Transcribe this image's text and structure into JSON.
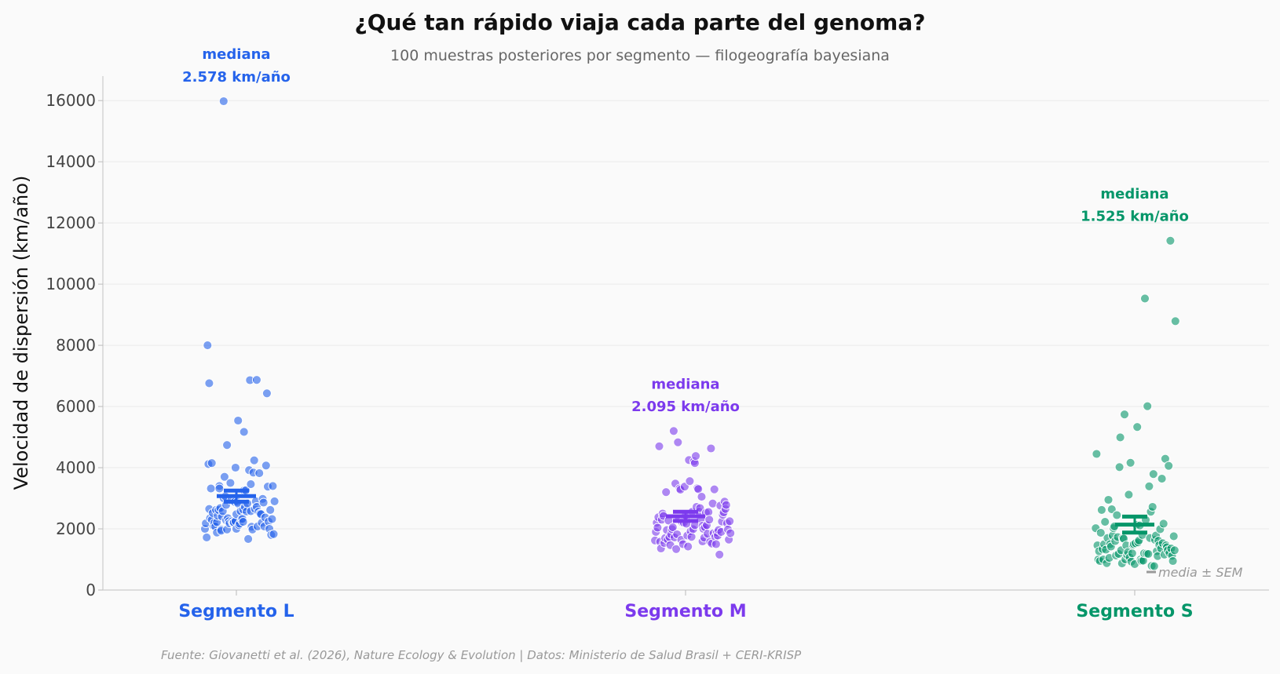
{
  "chart_data": {
    "type": "scatter",
    "title": "¿Qué tan rápido viaja cada parte del genoma?",
    "subtitle": "100 muestras posteriores por segmento — filogeografía bayesiana",
    "xlabel": "",
    "ylabel": "Velocidad de dispersión (km/año)",
    "ylim": [
      0,
      16800
    ],
    "yticks": [
      0,
      2000,
      4000,
      6000,
      8000,
      10000,
      12000,
      14000,
      16000
    ],
    "grid": "horizontal",
    "categories": [
      "Segmento L",
      "Segmento M",
      "Segmento S"
    ],
    "legend": {
      "label": "media ± SEM",
      "placement": "bottom-right"
    },
    "source": "Fuente: Giovanetti et al. (2026), Nature Ecology & Evolution | Datos: Ministerio de Salud Brasil + CERI-KRISP",
    "series": [
      {
        "name": "Segmento L",
        "color": "#2563eb",
        "median_label": "mediana\n2.578 km/año",
        "mean": 3070,
        "sem": 180,
        "points": [
          [
            -0.37,
            2000
          ],
          [
            -0.36,
            2180
          ],
          [
            -0.35,
            1720
          ],
          [
            -0.34,
            8000
          ],
          [
            -0.33,
            4120
          ],
          [
            -0.32,
            6760
          ],
          [
            -0.32,
            2650
          ],
          [
            -0.31,
            2350
          ],
          [
            -0.3,
            3320
          ],
          [
            -0.29,
            2300
          ],
          [
            -0.29,
            4150
          ],
          [
            -0.28,
            2520
          ],
          [
            -0.27,
            2100
          ],
          [
            -0.26,
            2200
          ],
          [
            -0.25,
            2080
          ],
          [
            -0.24,
            2620
          ],
          [
            -0.23,
            1880
          ],
          [
            -0.23,
            2220
          ],
          [
            -0.22,
            2430
          ],
          [
            -0.21,
            2620
          ],
          [
            -0.2,
            3400
          ],
          [
            -0.2,
            3320
          ],
          [
            -0.19,
            2680
          ],
          [
            -0.18,
            1980
          ],
          [
            -0.18,
            1940
          ],
          [
            -0.17,
            2400
          ],
          [
            -0.16,
            2580
          ],
          [
            -0.15,
            3000
          ],
          [
            -0.15,
            15980
          ],
          [
            -0.14,
            3700
          ],
          [
            -0.13,
            3060
          ],
          [
            -0.12,
            2780
          ],
          [
            -0.12,
            2280
          ],
          [
            -0.11,
            1980
          ],
          [
            -0.11,
            4740
          ],
          [
            -0.1,
            2350
          ],
          [
            -0.09,
            2250
          ],
          [
            -0.08,
            2180
          ],
          [
            -0.07,
            3500
          ],
          [
            -0.06,
            2930
          ],
          [
            -0.05,
            2250
          ],
          [
            -0.04,
            2200
          ],
          [
            -0.03,
            2210
          ],
          [
            -0.02,
            2880
          ],
          [
            -0.01,
            2250
          ],
          [
            -0.01,
            4000
          ],
          [
            0.0,
            2480
          ],
          [
            0.0,
            2000
          ],
          [
            0.01,
            2880
          ],
          [
            0.02,
            2830
          ],
          [
            0.02,
            5540
          ],
          [
            0.03,
            2120
          ],
          [
            0.04,
            2170
          ],
          [
            0.05,
            2580
          ],
          [
            0.06,
            2300
          ],
          [
            0.07,
            2330
          ],
          [
            0.08,
            2630
          ],
          [
            0.08,
            2230
          ],
          [
            0.09,
            3260
          ],
          [
            0.09,
            5170
          ],
          [
            0.1,
            2720
          ],
          [
            0.11,
            3260
          ],
          [
            0.12,
            2570
          ],
          [
            0.13,
            2830
          ],
          [
            0.14,
            1670
          ],
          [
            0.15,
            3920
          ],
          [
            0.16,
            6860
          ],
          [
            0.17,
            2580
          ],
          [
            0.17,
            3460
          ],
          [
            0.18,
            2070
          ],
          [
            0.19,
            1980
          ],
          [
            0.2,
            3840
          ],
          [
            0.21,
            4240
          ],
          [
            0.22,
            2650
          ],
          [
            0.23,
            2900
          ],
          [
            0.24,
            6870
          ],
          [
            0.24,
            2720
          ],
          [
            0.25,
            2080
          ],
          [
            0.26,
            2560
          ],
          [
            0.27,
            3820
          ],
          [
            0.28,
            2500
          ],
          [
            0.29,
            2480
          ],
          [
            0.3,
            2200
          ],
          [
            0.31,
            2980
          ],
          [
            0.32,
            2860
          ],
          [
            0.33,
            2080
          ],
          [
            0.34,
            2370
          ],
          [
            0.35,
            4070
          ],
          [
            0.36,
            6430
          ],
          [
            0.37,
            3380
          ],
          [
            0.38,
            2240
          ],
          [
            0.39,
            2000
          ],
          [
            0.4,
            2620
          ],
          [
            0.41,
            1800
          ],
          [
            0.42,
            2320
          ],
          [
            0.43,
            3400
          ],
          [
            0.44,
            1830
          ],
          [
            0.45,
            2900
          ]
        ]
      },
      {
        "name": "Segmento M",
        "color": "#7c3aed",
        "median_label": "mediana\n2.095 km/año",
        "mean": 2410,
        "sem": 150,
        "points": [
          [
            -0.36,
            1620
          ],
          [
            -0.35,
            1900
          ],
          [
            -0.34,
            2200
          ],
          [
            -0.33,
            2040
          ],
          [
            -0.32,
            2380
          ],
          [
            -0.31,
            4700
          ],
          [
            -0.3,
            1580
          ],
          [
            -0.29,
            1360
          ],
          [
            -0.28,
            2300
          ],
          [
            -0.27,
            2500
          ],
          [
            -0.26,
            2420
          ],
          [
            -0.25,
            1540
          ],
          [
            -0.24,
            1700
          ],
          [
            -0.23,
            3200
          ],
          [
            -0.22,
            1960
          ],
          [
            -0.21,
            1650
          ],
          [
            -0.2,
            2270
          ],
          [
            -0.19,
            1730
          ],
          [
            -0.18,
            1470
          ],
          [
            -0.17,
            1820
          ],
          [
            -0.16,
            1990
          ],
          [
            -0.15,
            2050
          ],
          [
            -0.14,
            5200
          ],
          [
            -0.13,
            1720
          ],
          [
            -0.12,
            3480
          ],
          [
            -0.11,
            1340
          ],
          [
            -0.1,
            1820
          ],
          [
            -0.09,
            4830
          ],
          [
            -0.08,
            2310
          ],
          [
            -0.07,
            3320
          ],
          [
            -0.06,
            3280
          ],
          [
            -0.05,
            1640
          ],
          [
            -0.04,
            2210
          ],
          [
            -0.03,
            1500
          ],
          [
            -0.02,
            2200
          ],
          [
            -0.01,
            3380
          ],
          [
            0.0,
            2350
          ],
          [
            0.0,
            2440
          ],
          [
            0.01,
            2170
          ],
          [
            0.02,
            1780
          ],
          [
            0.03,
            1420
          ],
          [
            0.04,
            4250
          ],
          [
            0.05,
            3560
          ],
          [
            0.06,
            1920
          ],
          [
            0.07,
            1740
          ],
          [
            0.08,
            2560
          ],
          [
            0.09,
            1990
          ],
          [
            0.1,
            4210
          ],
          [
            0.11,
            4150
          ],
          [
            0.11,
            2120
          ],
          [
            0.12,
            4380
          ],
          [
            0.13,
            2720
          ],
          [
            0.14,
            3330
          ],
          [
            0.15,
            3300
          ],
          [
            0.16,
            2560
          ],
          [
            0.17,
            2680
          ],
          [
            0.18,
            2320
          ],
          [
            0.19,
            3050
          ],
          [
            0.2,
            2100
          ],
          [
            0.2,
            1590
          ],
          [
            0.21,
            2000
          ],
          [
            0.22,
            1710
          ],
          [
            0.23,
            2050
          ],
          [
            0.24,
            2530
          ],
          [
            0.25,
            2120
          ],
          [
            0.26,
            1840
          ],
          [
            0.27,
            2550
          ],
          [
            0.28,
            2300
          ],
          [
            0.29,
            1580
          ],
          [
            0.3,
            4630
          ],
          [
            0.31,
            1520
          ],
          [
            0.32,
            2830
          ],
          [
            0.33,
            1860
          ],
          [
            0.34,
            3290
          ],
          [
            0.35,
            1740
          ],
          [
            0.36,
            1500
          ],
          [
            0.37,
            1880
          ],
          [
            0.38,
            1780
          ],
          [
            0.39,
            1960
          ],
          [
            0.4,
            1160
          ],
          [
            0.41,
            2760
          ],
          [
            0.42,
            1900
          ],
          [
            0.43,
            2240
          ],
          [
            0.44,
            2460
          ],
          [
            0.45,
            2540
          ],
          [
            0.46,
            2890
          ],
          [
            0.47,
            2650
          ],
          [
            0.48,
            2780
          ],
          [
            0.49,
            2180
          ],
          [
            0.5,
            1980
          ],
          [
            0.51,
            1650
          ],
          [
            0.52,
            2250
          ],
          [
            0.53,
            1860
          ]
        ]
      },
      {
        "name": "Segmento S",
        "color": "#059669",
        "median_label": "mediana\n1.525 km/año",
        "mean": 2140,
        "sem": 260,
        "points": [
          [
            -0.46,
            2020
          ],
          [
            -0.45,
            4450
          ],
          [
            -0.44,
            1460
          ],
          [
            -0.43,
            1000
          ],
          [
            -0.42,
            1270
          ],
          [
            -0.41,
            950
          ],
          [
            -0.4,
            1870
          ],
          [
            -0.39,
            2620
          ],
          [
            -0.38,
            1340
          ],
          [
            -0.37,
            1000
          ],
          [
            -0.36,
            1500
          ],
          [
            -0.35,
            2230
          ],
          [
            -0.34,
            1320
          ],
          [
            -0.33,
            880
          ],
          [
            -0.32,
            1700
          ],
          [
            -0.31,
            2950
          ],
          [
            -0.3,
            1050
          ],
          [
            -0.29,
            1500
          ],
          [
            -0.28,
            1420
          ],
          [
            -0.27,
            2640
          ],
          [
            -0.26,
            1780
          ],
          [
            -0.25,
            2020
          ],
          [
            -0.24,
            2080
          ],
          [
            -0.23,
            1600
          ],
          [
            -0.22,
            1130
          ],
          [
            -0.21,
            2450
          ],
          [
            -0.2,
            1730
          ],
          [
            -0.19,
            1180
          ],
          [
            -0.18,
            4020
          ],
          [
            -0.17,
            4990
          ],
          [
            -0.16,
            1300
          ],
          [
            -0.15,
            870
          ],
          [
            -0.14,
            1700
          ],
          [
            -0.13,
            1680
          ],
          [
            -0.12,
            5740
          ],
          [
            -0.11,
            1000
          ],
          [
            -0.1,
            1460
          ],
          [
            -0.09,
            1150
          ],
          [
            -0.08,
            1240
          ],
          [
            -0.07,
            3120
          ],
          [
            -0.06,
            1070
          ],
          [
            -0.05,
            4160
          ],
          [
            -0.04,
            930
          ],
          [
            -0.03,
            1200
          ],
          [
            -0.02,
            1470
          ],
          [
            -0.01,
            1500
          ],
          [
            0.0,
            850
          ],
          [
            0.01,
            1530
          ],
          [
            0.02,
            2130
          ],
          [
            0.03,
            5330
          ],
          [
            0.04,
            1560
          ],
          [
            0.05,
            1620
          ],
          [
            0.06,
            2110
          ],
          [
            0.07,
            1000
          ],
          [
            0.08,
            950
          ],
          [
            0.09,
            1800
          ],
          [
            0.1,
            960
          ],
          [
            0.11,
            1200
          ],
          [
            0.12,
            9530
          ],
          [
            0.13,
            2290
          ],
          [
            0.14,
            1190
          ],
          [
            0.15,
            6010
          ],
          [
            0.16,
            1180
          ],
          [
            0.17,
            3390
          ],
          [
            0.18,
            1700
          ],
          [
            0.19,
            2560
          ],
          [
            0.2,
            790
          ],
          [
            0.21,
            2720
          ],
          [
            0.22,
            3790
          ],
          [
            0.23,
            780
          ],
          [
            0.24,
            1640
          ],
          [
            0.25,
            1780
          ],
          [
            0.26,
            1270
          ],
          [
            0.27,
            1110
          ],
          [
            0.28,
            1610
          ],
          [
            0.29,
            1470
          ],
          [
            0.3,
            1990
          ],
          [
            0.31,
            1360
          ],
          [
            0.32,
            3640
          ],
          [
            0.33,
            1530
          ],
          [
            0.34,
            2170
          ],
          [
            0.35,
            1160
          ],
          [
            0.36,
            4290
          ],
          [
            0.37,
            1460
          ],
          [
            0.38,
            1400
          ],
          [
            0.39,
            1300
          ],
          [
            0.4,
            4060
          ],
          [
            0.41,
            1210
          ],
          [
            0.42,
            11420
          ],
          [
            0.43,
            1360
          ],
          [
            0.44,
            1120
          ],
          [
            0.45,
            950
          ],
          [
            0.46,
            1760
          ],
          [
            0.47,
            1300
          ],
          [
            0.48,
            8790
          ]
        ]
      }
    ]
  }
}
